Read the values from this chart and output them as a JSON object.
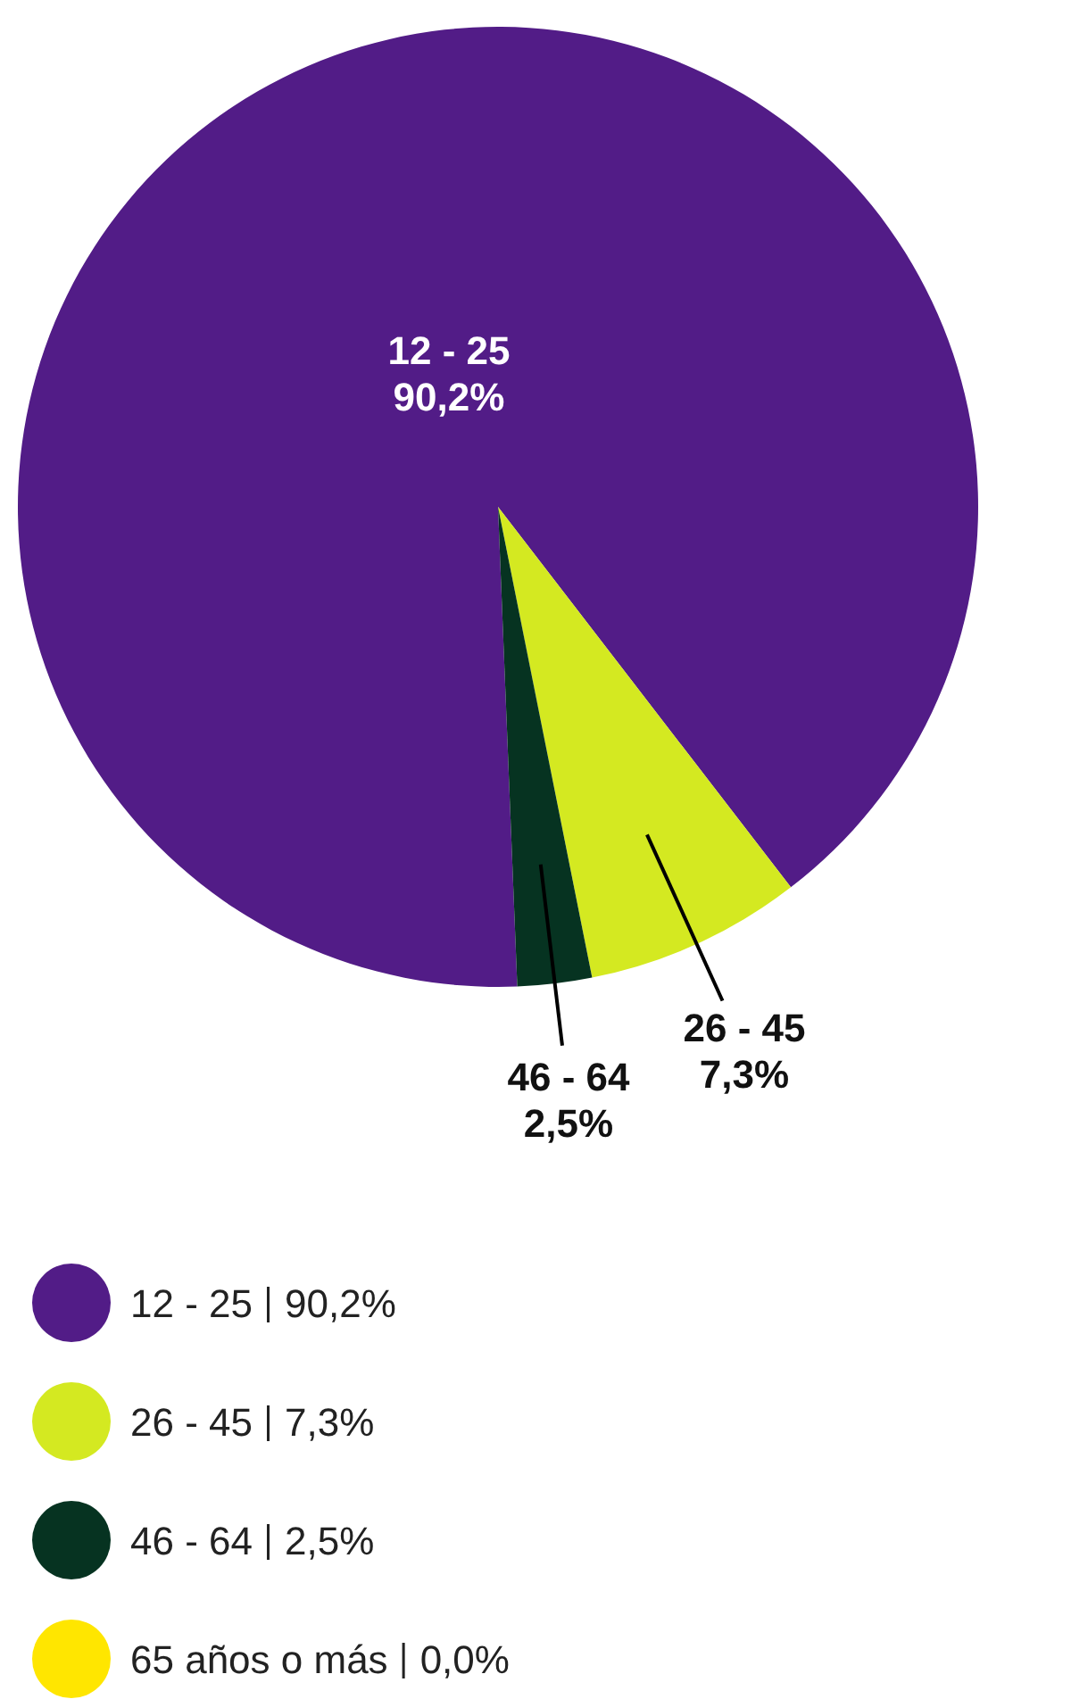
{
  "chart_data": {
    "type": "pie",
    "categories": [
      "12 - 25",
      "26 - 45",
      "46 - 64",
      "65 años o más"
    ],
    "values": [
      90.2,
      7.3,
      2.5,
      0.0
    ],
    "value_labels": [
      "90,2%",
      "7,3%",
      "2,5%",
      "0,0%"
    ],
    "colors": [
      "#521c87",
      "#d4e921",
      "#063321",
      "#ffe600"
    ],
    "legend": "bottom"
  }
}
